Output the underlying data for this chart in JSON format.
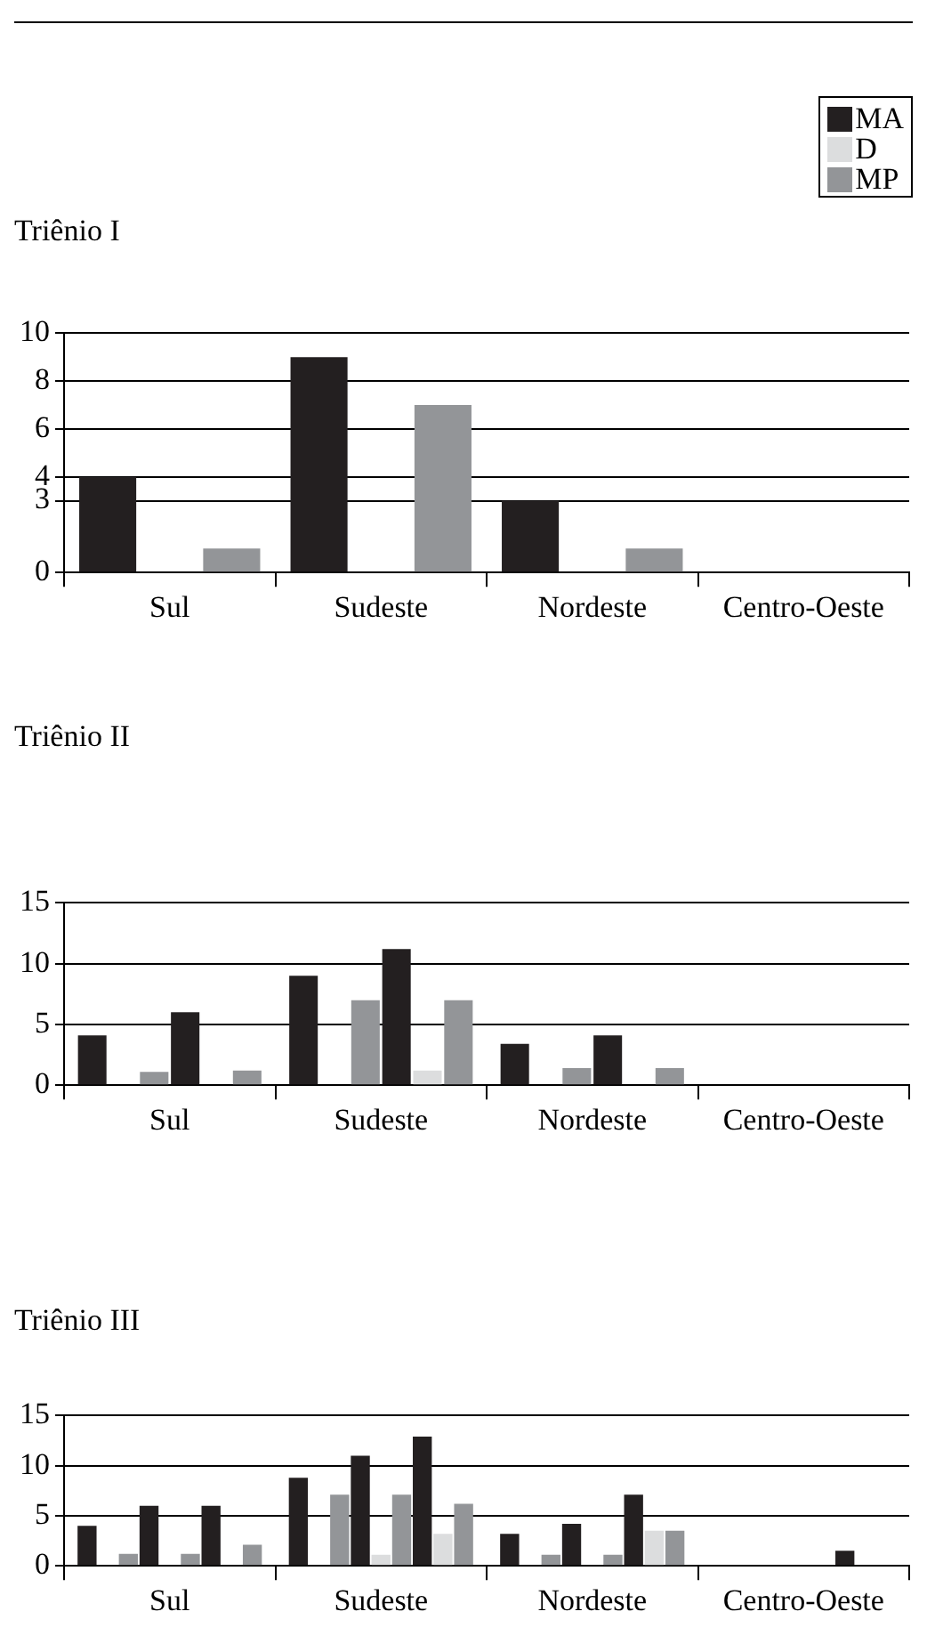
{
  "chart_data": [
    {
      "type": "bar",
      "title": "Triênio I",
      "categories": [
        "Sul",
        "Sudeste",
        "Nordeste",
        "Centro-Oeste"
      ],
      "series": [
        {
          "name": "MA",
          "color": "#231f20",
          "values": [
            4,
            9,
            3,
            0
          ]
        },
        {
          "name": "D",
          "color": "#dcddde",
          "values": [
            0,
            0,
            0,
            0
          ]
        },
        {
          "name": "MP",
          "color": "#939598",
          "values": [
            1,
            7,
            1,
            0
          ]
        }
      ],
      "ylim": [
        0,
        10
      ],
      "yticks": [
        0,
        3,
        4,
        6,
        8,
        10
      ],
      "grid": "y",
      "legend": "top right"
    },
    {
      "type": "bar",
      "title": "Triênio II",
      "categories": [
        "Sul",
        "Sudeste",
        "Nordeste",
        "Centro-Oeste"
      ],
      "series": [
        {
          "color": "#231f20",
          "values": [
            4.1,
            9,
            3.4,
            0
          ]
        },
        {
          "color": "#dcddde",
          "values": [
            0,
            0,
            0,
            0
          ]
        },
        {
          "color": "#939598",
          "values": [
            1.1,
            7,
            1.4,
            0
          ]
        },
        {
          "color": "#231f20",
          "values": [
            6,
            11.2,
            4.1,
            0
          ]
        },
        {
          "color": "#dcddde",
          "values": [
            0,
            1.2,
            0,
            0
          ]
        },
        {
          "color": "#939598",
          "values": [
            1.2,
            7,
            1.4,
            0
          ]
        }
      ],
      "ylim": [
        0,
        15
      ],
      "yticks": [
        0,
        5,
        10,
        15
      ],
      "grid": "y"
    },
    {
      "type": "bar",
      "title": "Triênio III",
      "categories": [
        "Sul",
        "Sudeste",
        "Nordeste",
        "Centro-Oeste"
      ],
      "series": [
        {
          "color": "#231f20",
          "values": [
            4,
            8.8,
            3.2,
            0
          ]
        },
        {
          "color": "#dcddde",
          "values": [
            0,
            0,
            0,
            0
          ]
        },
        {
          "color": "#939598",
          "values": [
            1.2,
            7.1,
            1.1,
            0
          ]
        },
        {
          "color": "#231f20",
          "values": [
            6,
            11,
            4.2,
            0
          ]
        },
        {
          "color": "#dcddde",
          "values": [
            0,
            1.1,
            0,
            0
          ]
        },
        {
          "color": "#939598",
          "values": [
            1.2,
            7.1,
            1.1,
            0
          ]
        },
        {
          "color": "#231f20",
          "values": [
            6,
            12.9,
            7.1,
            1.5
          ]
        },
        {
          "color": "#dcddde",
          "values": [
            0,
            3.2,
            3.5,
            0
          ]
        },
        {
          "color": "#939598",
          "values": [
            2.1,
            6.2,
            3.5,
            0
          ]
        }
      ],
      "ylim": [
        0,
        15
      ],
      "yticks": [
        0,
        5,
        10,
        15
      ],
      "grid": "y"
    }
  ]
}
